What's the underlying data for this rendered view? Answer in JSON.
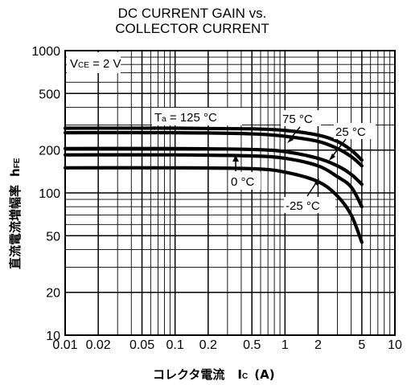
{
  "chart_data": {
    "type": "line",
    "title": [
      "DC CURRENT GAIN vs.",
      "COLLECTOR CURRENT"
    ],
    "xlabel": {
      "main": "コレクタ電流",
      "symbol": "I",
      "subscript": "C",
      "unit": "(A)"
    },
    "ylabel": {
      "main": "直流電流増幅率",
      "symbol": "h",
      "subscript": "FE"
    },
    "x_scale": "log",
    "y_scale": "log",
    "xlim": [
      0.01,
      10
    ],
    "ylim": [
      10,
      1000
    ],
    "x_ticks": [
      0.01,
      0.02,
      0.05,
      0.1,
      0.2,
      0.5,
      1,
      2,
      5,
      10
    ],
    "x_tick_labels": [
      "0.01",
      "0.02",
      "0.05",
      "0.1",
      "0.2",
      "0.5",
      "1",
      "2",
      "5",
      "10"
    ],
    "y_ticks": [
      10,
      20,
      50,
      100,
      200,
      500,
      1000
    ],
    "y_tick_labels": [
      "10",
      "20",
      "50",
      "100",
      "200",
      "500",
      "1000"
    ],
    "grid": true,
    "condition": {
      "symbol": "V",
      "subscript": "CE",
      "value": " = 2 V"
    },
    "series": [
      {
        "name": "Ta = 125 °C",
        "x": [
          0.01,
          0.1,
          0.5,
          1.0,
          2.0,
          3.0,
          4.0,
          5.0
        ],
        "y": [
          285,
          285,
          282,
          275,
          255,
          230,
          200,
          170
        ]
      },
      {
        "name": "75 °C",
        "x": [
          0.01,
          0.1,
          0.5,
          1.0,
          2.0,
          3.0,
          4.0,
          5.0
        ],
        "y": [
          265,
          265,
          260,
          250,
          230,
          205,
          180,
          155
        ]
      },
      {
        "name": "25 °C",
        "x": [
          0.01,
          0.1,
          0.5,
          1.0,
          2.0,
          3.0,
          4.0,
          5.0
        ],
        "y": [
          205,
          205,
          202,
          195,
          175,
          155,
          135,
          115
        ]
      },
      {
        "name": "0 °C",
        "x": [
          0.01,
          0.1,
          0.5,
          1.0,
          2.0,
          3.0,
          4.0,
          5.0
        ],
        "y": [
          185,
          185,
          182,
          175,
          155,
          130,
          110,
          80
        ]
      },
      {
        "name": "-25 °C",
        "x": [
          0.01,
          0.1,
          0.5,
          1.0,
          2.0,
          3.0,
          4.0,
          5.0
        ],
        "y": [
          150,
          150,
          148,
          140,
          120,
          95,
          70,
          45
        ]
      }
    ],
    "annotations": [
      {
        "symbol": "T",
        "subscript": "a",
        "text": " = 125 °C"
      },
      {
        "text": "75 °C"
      },
      {
        "text": "25 °C"
      },
      {
        "text": "0 °C"
      },
      {
        "text": "-25 °C"
      }
    ]
  }
}
